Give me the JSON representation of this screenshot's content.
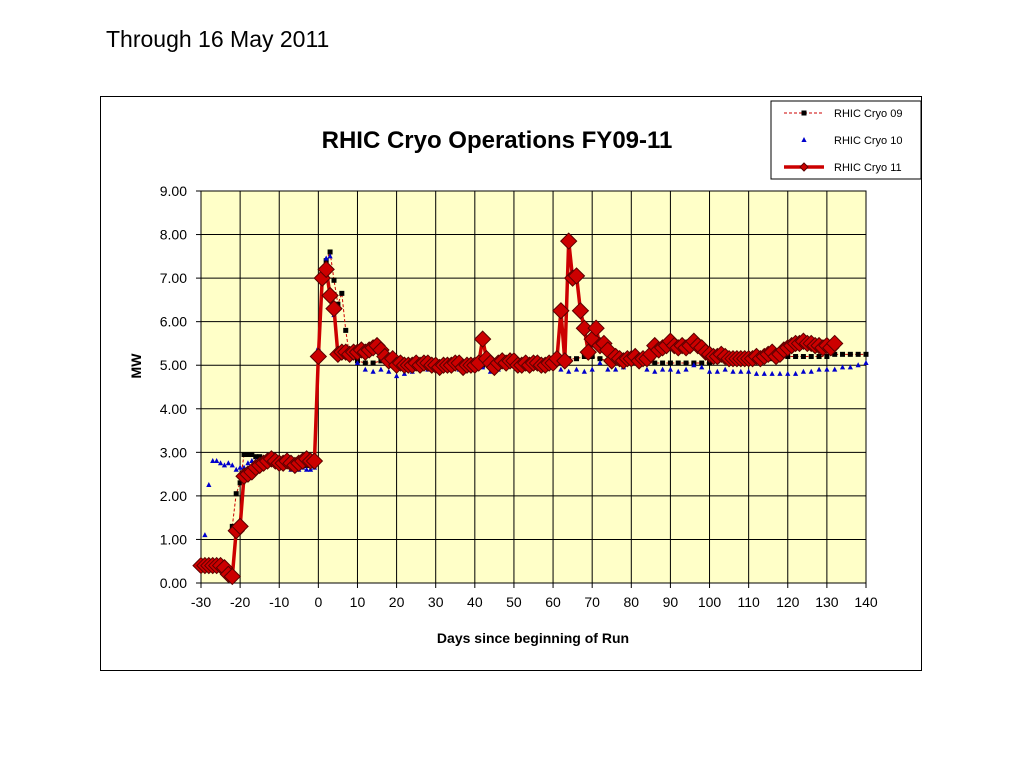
{
  "heading": "Through 16 May 2011",
  "chart_data": {
    "type": "line",
    "title": "RHIC Cryo Operations FY09-11",
    "xlabel": "Days since beginning of Run",
    "ylabel": "MW",
    "xlim": [
      -30,
      140
    ],
    "ylim": [
      0,
      9
    ],
    "x_ticks": [
      "-30",
      "-20",
      "-10",
      "0",
      "10",
      "20",
      "30",
      "40",
      "50",
      "60",
      "70",
      "80",
      "90",
      "100",
      "110",
      "120",
      "130",
      "140"
    ],
    "y_ticks": [
      "0.00",
      "1.00",
      "2.00",
      "3.00",
      "4.00",
      "5.00",
      "6.00",
      "7.00",
      "8.00",
      "9.00"
    ],
    "grid": true,
    "plot_background": "#ffffc8",
    "legend_position": "top-right",
    "series": [
      {
        "name": "RHIC Cryo 09",
        "color": "#000000",
        "line_color": "#cc0000",
        "marker": "square",
        "style": "dashed",
        "x": [
          -22,
          -21,
          -20,
          -19,
          -18,
          -17,
          -16,
          -15,
          -14,
          -13,
          -12,
          -11,
          -10,
          -9,
          -8,
          -7,
          -6,
          -5,
          -4,
          -3,
          -2,
          -1,
          0,
          1,
          2,
          3,
          4,
          5,
          6,
          7,
          8,
          10,
          12,
          14,
          16,
          18,
          20,
          22,
          24,
          26,
          28,
          30,
          32,
          34,
          36,
          38,
          40,
          42,
          44,
          46,
          48,
          50,
          52,
          54,
          56,
          58,
          60,
          62,
          64,
          66,
          68,
          70,
          72,
          74,
          76,
          78,
          80,
          82,
          84,
          86,
          88,
          90,
          92,
          94,
          96,
          98,
          100,
          102,
          104,
          106,
          108,
          110,
          112,
          114,
          116,
          118,
          120,
          122,
          124,
          126,
          128,
          130,
          132,
          134,
          136,
          138,
          140
        ],
        "values": [
          1.3,
          2.05,
          2.3,
          2.95,
          2.95,
          2.95,
          2.9,
          2.9,
          2.85,
          2.85,
          2.8,
          2.8,
          2.8,
          2.75,
          2.75,
          2.7,
          2.7,
          2.7,
          2.7,
          2.7,
          2.7,
          2.75,
          5.2,
          7.1,
          7.4,
          7.6,
          6.95,
          6.4,
          6.65,
          5.8,
          5.2,
          5.1,
          5.05,
          5.05,
          5.1,
          5.05,
          5.1,
          5.05,
          5.05,
          5.05,
          5.0,
          5.0,
          5.0,
          5.05,
          5.05,
          5.0,
          5.0,
          5.0,
          5.0,
          5.05,
          5.05,
          5.05,
          5.1,
          5.1,
          5.1,
          5.1,
          5.1,
          5.15,
          5.15,
          5.15,
          5.2,
          5.2,
          5.15,
          5.1,
          5.1,
          5.1,
          5.1,
          5.05,
          5.05,
          5.05,
          5.05,
          5.05,
          5.05,
          5.05,
          5.05,
          5.05,
          5.05,
          5.1,
          5.1,
          5.1,
          5.1,
          5.1,
          5.15,
          5.15,
          5.15,
          5.2,
          5.2,
          5.2,
          5.2,
          5.2,
          5.2,
          5.2,
          5.25,
          5.25,
          5.25,
          5.25,
          5.25
        ]
      },
      {
        "name": "RHIC Cryo 10",
        "color": "#0000cc",
        "marker": "triangle",
        "style": "markers",
        "x": [
          -30,
          -29,
          -28,
          -27,
          -26,
          -25,
          -24,
          -23,
          -22,
          -21,
          -20,
          -19,
          -18,
          -17,
          -16,
          -15,
          -14,
          -13,
          -12,
          -11,
          -10,
          -9,
          -8,
          -7,
          -6,
          -5,
          -4,
          -3,
          -2,
          -1,
          0,
          1,
          2,
          3,
          4,
          5,
          6,
          7,
          8,
          10,
          12,
          14,
          16,
          18,
          20,
          22,
          24,
          26,
          28,
          30,
          32,
          34,
          36,
          38,
          40,
          42,
          44,
          46,
          48,
          50,
          52,
          54,
          56,
          58,
          60,
          62,
          64,
          66,
          68,
          70,
          72,
          74,
          76,
          78,
          80,
          82,
          84,
          86,
          88,
          90,
          92,
          94,
          96,
          98,
          100,
          102,
          104,
          106,
          108,
          110,
          112,
          114,
          116,
          118,
          120,
          122,
          124,
          126,
          128,
          130,
          132,
          134,
          136,
          138,
          140
        ],
        "values": [
          0.4,
          1.1,
          2.25,
          2.8,
          2.8,
          2.75,
          2.7,
          2.75,
          2.7,
          2.6,
          2.65,
          2.65,
          2.75,
          2.8,
          2.8,
          2.75,
          2.75,
          2.85,
          2.85,
          2.75,
          2.75,
          2.8,
          2.7,
          2.6,
          2.65,
          2.6,
          2.65,
          2.6,
          2.6,
          2.65,
          5.4,
          6.9,
          7.45,
          7.5,
          6.15,
          5.3,
          5.4,
          5.35,
          5.3,
          5.05,
          4.9,
          4.85,
          4.9,
          4.85,
          4.75,
          4.8,
          4.85,
          4.9,
          4.9,
          4.95,
          4.9,
          4.95,
          4.9,
          4.9,
          4.9,
          4.95,
          4.85,
          4.9,
          4.95,
          5.0,
          5.0,
          5.05,
          5.1,
          5.0,
          4.95,
          4.9,
          4.85,
          4.9,
          4.85,
          4.9,
          5.05,
          4.9,
          4.9,
          4.95,
          5.05,
          5.0,
          4.9,
          4.85,
          4.9,
          4.9,
          4.85,
          4.9,
          5.0,
          4.95,
          4.85,
          4.85,
          4.9,
          4.85,
          4.85,
          4.85,
          4.8,
          4.8,
          4.8,
          4.8,
          4.8,
          4.8,
          4.85,
          4.85,
          4.9,
          4.9,
          4.9,
          4.95,
          4.95,
          5.0,
          5.05
        ]
      },
      {
        "name": "RHIC Cryo 11",
        "color": "#cc0000",
        "line_color": "#cc0000",
        "marker": "diamond",
        "style": "solid",
        "x": [
          -30,
          -29,
          -28,
          -27,
          -26,
          -25,
          -24,
          -23,
          -22,
          -21,
          -20,
          -19,
          -18,
          -17,
          -16,
          -15,
          -14,
          -13,
          -12,
          -11,
          -10,
          -9,
          -8,
          -7,
          -6,
          -5,
          -4,
          -3,
          -2,
          -1,
          0,
          1,
          2,
          3,
          4,
          5,
          6,
          7,
          8,
          9,
          10,
          11,
          12,
          13,
          14,
          15,
          16,
          17,
          18,
          19,
          20,
          21,
          22,
          23,
          24,
          25,
          26,
          27,
          28,
          29,
          30,
          31,
          32,
          33,
          34,
          35,
          36,
          37,
          38,
          39,
          40,
          41,
          42,
          43,
          44,
          45,
          46,
          47,
          48,
          49,
          50,
          51,
          52,
          53,
          54,
          55,
          56,
          57,
          58,
          59,
          60,
          61,
          62,
          63,
          64,
          65,
          66,
          67,
          68,
          69,
          70,
          71,
          72,
          73,
          74,
          75,
          76,
          77,
          78,
          79,
          80,
          81,
          82,
          83,
          84,
          85,
          86,
          87,
          88,
          89,
          90,
          91,
          92,
          93,
          94,
          95,
          96,
          97,
          98,
          99,
          100,
          101,
          102,
          103,
          104,
          105,
          106,
          107,
          108,
          109,
          110,
          111,
          112,
          113,
          114,
          115,
          116,
          117,
          118,
          119,
          120,
          121,
          122,
          123,
          124,
          125,
          126,
          127,
          128,
          129,
          130,
          131,
          132
        ],
        "values": [
          0.4,
          0.4,
          0.4,
          0.4,
          0.4,
          0.4,
          0.35,
          0.2,
          0.15,
          1.2,
          1.3,
          2.45,
          2.5,
          2.55,
          2.65,
          2.7,
          2.75,
          2.8,
          2.85,
          2.8,
          2.75,
          2.75,
          2.8,
          2.75,
          2.7,
          2.75,
          2.8,
          2.85,
          2.8,
          2.8,
          5.2,
          7.0,
          7.2,
          6.6,
          6.3,
          5.25,
          5.3,
          5.3,
          5.25,
          5.3,
          5.3,
          5.35,
          5.3,
          5.35,
          5.4,
          5.45,
          5.35,
          5.2,
          5.1,
          5.15,
          5.0,
          5.05,
          5.0,
          5.0,
          5.0,
          5.05,
          5.0,
          5.05,
          5.05,
          5.0,
          5.0,
          4.95,
          5.0,
          5.0,
          5.0,
          5.05,
          5.05,
          4.95,
          5.0,
          5.0,
          5.0,
          5.05,
          5.6,
          5.15,
          5.05,
          4.95,
          5.05,
          5.1,
          5.05,
          5.1,
          5.1,
          5.0,
          5.0,
          5.05,
          5.0,
          5.05,
          5.05,
          5.0,
          5.0,
          5.05,
          5.05,
          5.15,
          6.25,
          5.1,
          7.85,
          7.0,
          7.05,
          6.25,
          5.85,
          5.3,
          5.6,
          5.85,
          5.45,
          5.5,
          5.35,
          5.1,
          5.2,
          5.15,
          5.1,
          5.15,
          5.15,
          5.2,
          5.1,
          5.15,
          5.15,
          5.25,
          5.45,
          5.35,
          5.4,
          5.45,
          5.55,
          5.45,
          5.4,
          5.45,
          5.4,
          5.45,
          5.55,
          5.45,
          5.4,
          5.3,
          5.25,
          5.2,
          5.2,
          5.25,
          5.2,
          5.15,
          5.15,
          5.15,
          5.15,
          5.15,
          5.15,
          5.15,
          5.2,
          5.15,
          5.2,
          5.25,
          5.3,
          5.2,
          5.25,
          5.35,
          5.4,
          5.45,
          5.5,
          5.5,
          5.55,
          5.5,
          5.5,
          5.45,
          5.45,
          5.4,
          5.45,
          5.4,
          5.5
        ]
      }
    ]
  }
}
